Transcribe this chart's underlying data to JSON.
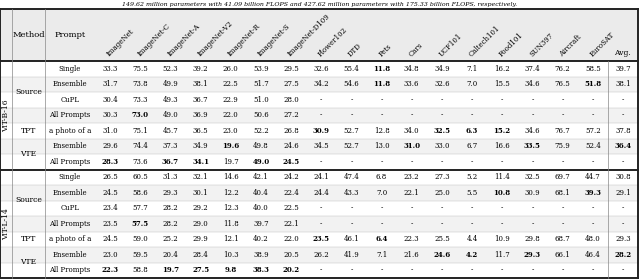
{
  "title_text": "149.62 million parameters with 41.09 billion FLOPS and 427.62 million parameters with 175.33 billion FLOPS, respectively.",
  "col_labels": [
    "ImageNet",
    "ImageNet-C",
    "ImageNet-A",
    "ImageNet-V2",
    "ImageNet-R",
    "ImageNet-S",
    "ImageNet-D109",
    "Flower102",
    "DTD",
    "Pets",
    "Cars",
    "UCF101",
    "Caltech101",
    "Food101",
    "SUN397",
    "Aircraft",
    "EuroSAT",
    "Avg."
  ],
  "rows": [
    {
      "group": "ViT-B-16",
      "method": "Source",
      "prompt": "Single",
      "vals": [
        "33.3",
        "75.5",
        "52.3",
        "39.2",
        "26.0",
        "53.9",
        "29.5",
        "32.6",
        "55.4",
        "11.8",
        "34.8",
        "34.9",
        "7.1",
        "16.2",
        "37.4",
        "76.2",
        "58.5",
        "39.7"
      ],
      "bold": [
        0,
        0,
        0,
        0,
        0,
        0,
        0,
        0,
        0,
        1,
        0,
        0,
        0,
        0,
        0,
        0,
        0,
        0
      ]
    },
    {
      "group": "ViT-B-16",
      "method": "Source",
      "prompt": "Ensemble",
      "vals": [
        "31.7",
        "73.8",
        "49.9",
        "38.1",
        "22.5",
        "51.7",
        "27.5",
        "34.2",
        "54.6",
        "11.8",
        "33.6",
        "32.6",
        "7.0",
        "15.5",
        "34.6",
        "76.5",
        "51.8",
        "38.1"
      ],
      "bold": [
        0,
        0,
        0,
        0,
        0,
        0,
        0,
        0,
        0,
        1,
        0,
        0,
        0,
        0,
        0,
        0,
        1,
        0
      ]
    },
    {
      "group": "ViT-B-16",
      "method": "Source",
      "prompt": "CuPL",
      "vals": [
        "30.4",
        "73.3",
        "49.3",
        "36.7",
        "22.9",
        "51.0",
        "28.0",
        "-",
        "-",
        "-",
        "-",
        "-",
        "-",
        "-",
        "-",
        "-",
        "-",
        "-"
      ],
      "bold": [
        0,
        0,
        0,
        0,
        0,
        0,
        0,
        0,
        0,
        0,
        0,
        0,
        0,
        0,
        0,
        0,
        0,
        0
      ]
    },
    {
      "group": "ViT-B-16",
      "method": "Source",
      "prompt": "All Prompts",
      "vals": [
        "30.3",
        "73.0",
        "49.0",
        "36.9",
        "22.0",
        "50.6",
        "27.2",
        "-",
        "-",
        "-",
        "-",
        "-",
        "-",
        "-",
        "-",
        "-",
        "-",
        "-"
      ],
      "bold": [
        0,
        1,
        0,
        0,
        0,
        0,
        0,
        0,
        0,
        0,
        0,
        0,
        0,
        0,
        0,
        0,
        0,
        0
      ]
    },
    {
      "group": "ViT-B-16",
      "method": "TPT",
      "prompt": "a photo of a",
      "vals": [
        "31.0",
        "75.1",
        "45.7",
        "36.5",
        "23.0",
        "52.2",
        "26.8",
        "30.9",
        "52.7",
        "12.8",
        "34.0",
        "32.5",
        "6.3",
        "15.2",
        "34.6",
        "76.7",
        "57.2",
        "37.8"
      ],
      "bold": [
        0,
        0,
        0,
        0,
        0,
        0,
        0,
        1,
        0,
        0,
        0,
        1,
        1,
        1,
        0,
        0,
        0,
        0
      ]
    },
    {
      "group": "ViT-B-16",
      "method": "VTE",
      "prompt": "Ensemble",
      "vals": [
        "29.6",
        "74.4",
        "37.3",
        "34.9",
        "19.6",
        "49.8",
        "24.6",
        "34.5",
        "52.7",
        "13.0",
        "31.0",
        "33.0",
        "6.7",
        "16.6",
        "33.5",
        "75.9",
        "52.4",
        "36.4"
      ],
      "bold": [
        0,
        0,
        0,
        0,
        1,
        0,
        0,
        0,
        0,
        0,
        1,
        0,
        0,
        0,
        1,
        0,
        0,
        1
      ]
    },
    {
      "group": "ViT-B-16",
      "method": "VTE",
      "prompt": "All Prompts",
      "vals": [
        "28.3",
        "73.6",
        "36.7",
        "34.1",
        "19.7",
        "49.0",
        "24.5",
        "-",
        "-",
        "-",
        "-",
        "-",
        "-",
        "-",
        "-",
        "-",
        "-",
        "-"
      ],
      "bold": [
        1,
        0,
        1,
        1,
        0,
        1,
        1,
        0,
        0,
        0,
        0,
        0,
        0,
        0,
        0,
        0,
        0,
        0
      ]
    },
    {
      "group": "ViT-L-14",
      "method": "Source",
      "prompt": "Single",
      "vals": [
        "26.5",
        "60.5",
        "31.3",
        "32.1",
        "14.6",
        "42.1",
        "24.2",
        "24.1",
        "47.4",
        "6.8",
        "23.2",
        "27.3",
        "5.2",
        "11.4",
        "32.5",
        "69.7",
        "44.7",
        "30.8"
      ],
      "bold": [
        0,
        0,
        0,
        0,
        0,
        0,
        0,
        0,
        0,
        0,
        0,
        0,
        0,
        0,
        0,
        0,
        0,
        0
      ]
    },
    {
      "group": "ViT-L-14",
      "method": "Source",
      "prompt": "Ensemble",
      "vals": [
        "24.5",
        "58.6",
        "29.3",
        "30.1",
        "12.2",
        "40.4",
        "22.4",
        "24.4",
        "43.3",
        "7.0",
        "22.1",
        "25.0",
        "5.5",
        "10.8",
        "30.9",
        "68.1",
        "39.3",
        "29.1"
      ],
      "bold": [
        0,
        0,
        0,
        0,
        0,
        0,
        0,
        0,
        0,
        0,
        0,
        0,
        0,
        1,
        0,
        0,
        1,
        0
      ]
    },
    {
      "group": "ViT-L-14",
      "method": "Source",
      "prompt": "CuPL",
      "vals": [
        "23.4",
        "57.7",
        "28.2",
        "29.2",
        "12.3",
        "40.0",
        "22.5",
        "-",
        "-",
        "-",
        "-",
        "-",
        "-",
        "-",
        "-",
        "-",
        "-",
        "-"
      ],
      "bold": [
        0,
        0,
        0,
        0,
        0,
        0,
        0,
        0,
        0,
        0,
        0,
        0,
        0,
        0,
        0,
        0,
        0,
        0
      ]
    },
    {
      "group": "ViT-L-14",
      "method": "Source",
      "prompt": "All Prompts",
      "vals": [
        "23.5",
        "57.5",
        "28.2",
        "29.0",
        "11.8",
        "39.7",
        "22.1",
        "-",
        "-",
        "-",
        "-",
        "-",
        "-",
        "-",
        "-",
        "-",
        "-",
        "-"
      ],
      "bold": [
        0,
        1,
        0,
        0,
        0,
        0,
        0,
        0,
        0,
        0,
        0,
        0,
        0,
        0,
        0,
        0,
        0,
        0
      ]
    },
    {
      "group": "ViT-L-14",
      "method": "TPT",
      "prompt": "a photo of a",
      "vals": [
        "24.5",
        "59.0",
        "25.2",
        "29.9",
        "12.1",
        "40.2",
        "22.0",
        "23.5",
        "46.1",
        "6.4",
        "22.3",
        "25.5",
        "4.4",
        "10.9",
        "29.8",
        "68.7",
        "48.0",
        "29.3"
      ],
      "bold": [
        0,
        0,
        0,
        0,
        0,
        0,
        0,
        1,
        0,
        1,
        0,
        0,
        0,
        0,
        0,
        0,
        0,
        0
      ]
    },
    {
      "group": "ViT-L-14",
      "method": "VTE",
      "prompt": "Ensemble",
      "vals": [
        "23.0",
        "59.5",
        "20.4",
        "28.4",
        "10.3",
        "38.9",
        "20.5",
        "26.2",
        "41.9",
        "7.1",
        "21.6",
        "24.6",
        "4.2",
        "11.7",
        "29.3",
        "66.1",
        "46.4",
        "28.2"
      ],
      "bold": [
        0,
        0,
        0,
        0,
        0,
        0,
        0,
        0,
        0,
        0,
        0,
        1,
        1,
        0,
        1,
        0,
        0,
        1
      ]
    },
    {
      "group": "ViT-L-14",
      "method": "VTE",
      "prompt": "All Prompts",
      "vals": [
        "22.3",
        "58.8",
        "19.7",
        "27.5",
        "9.8",
        "38.3",
        "20.2",
        "-",
        "-",
        "-",
        "-",
        "-",
        "-",
        "-",
        "-",
        "-",
        "-",
        "-"
      ],
      "bold": [
        1,
        0,
        1,
        1,
        1,
        1,
        1,
        0,
        0,
        0,
        0,
        0,
        0,
        0,
        0,
        0,
        0,
        0
      ]
    }
  ]
}
